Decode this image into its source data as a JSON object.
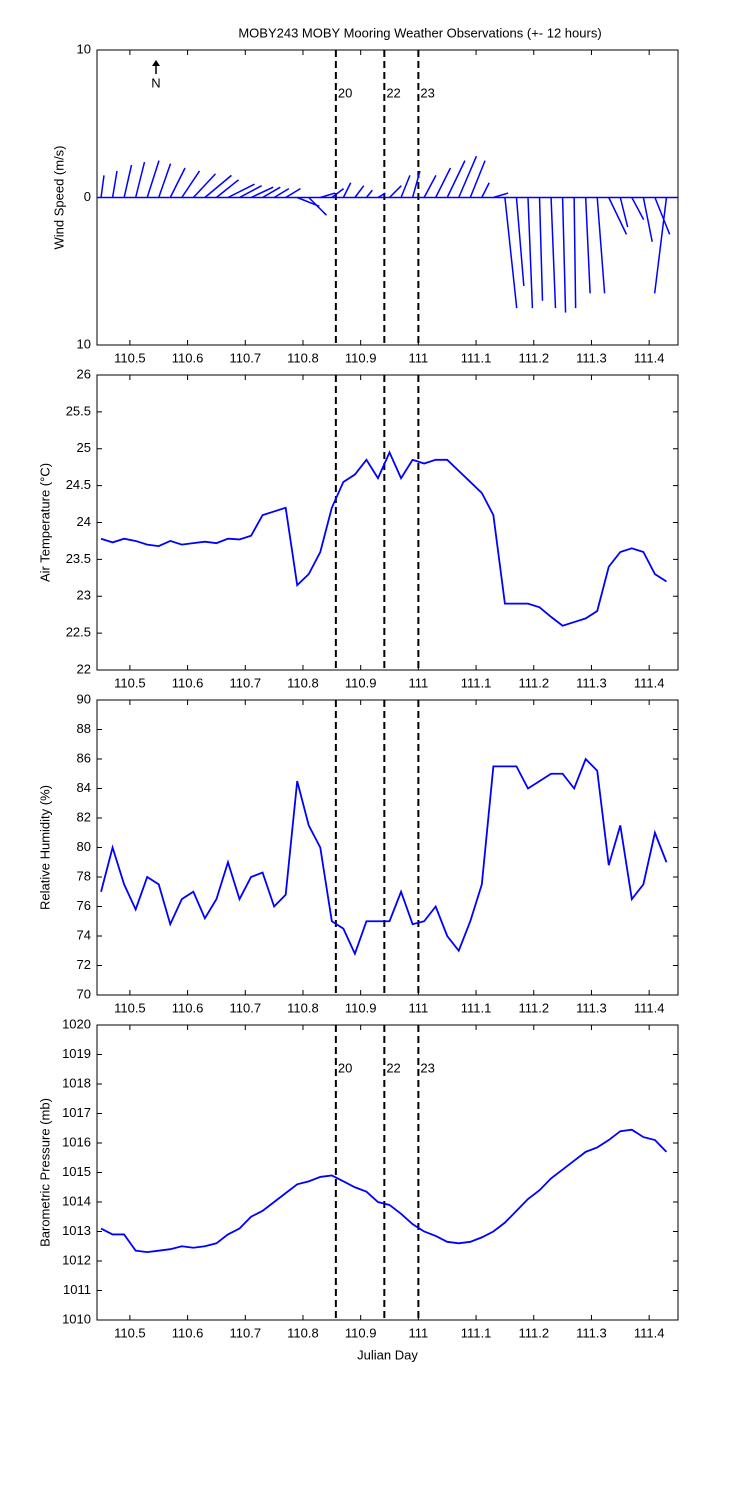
{
  "chart_data": [
    {
      "type": "wind",
      "title": "MOBY243 MOBY Mooring Weather Observations (+- 12 hours)",
      "north_label": "N",
      "ylabel": "Wind Speed (m/s)",
      "color": "#0000ff",
      "x": [
        110.45,
        110.47,
        110.49,
        110.51,
        110.53,
        110.55,
        110.57,
        110.59,
        110.61,
        110.63,
        110.65,
        110.67,
        110.69,
        110.71,
        110.73,
        110.75,
        110.77,
        110.79,
        110.81,
        110.83,
        110.85,
        110.87,
        110.89,
        110.91,
        110.93,
        110.95,
        110.97,
        110.99,
        111.01,
        111.03,
        111.05,
        111.07,
        111.09,
        111.11,
        111.13,
        111.15,
        111.17,
        111.19,
        111.21,
        111.23,
        111.25,
        111.27,
        111.29,
        111.31,
        111.33,
        111.35,
        111.37,
        111.39,
        111.41,
        111.43
      ],
      "u": [
        0.2,
        0.3,
        0.5,
        0.6,
        0.8,
        0.8,
        1.0,
        1.2,
        1.5,
        1.8,
        1.5,
        1.8,
        1.5,
        1.5,
        1.2,
        1.0,
        1.0,
        1.5,
        1.2,
        1.0,
        0.8,
        0.5,
        0.6,
        0.4,
        0.5,
        0.8,
        0.6,
        0.5,
        0.8,
        1.0,
        1.2,
        1.2,
        1.0,
        0.5,
        1.0,
        0.8,
        0.5,
        0.3,
        0.2,
        0.3,
        0.2,
        0.1,
        0.3,
        0.5,
        1.2,
        0.5,
        0.8,
        0.6,
        1.0,
        -0.8
      ],
      "v": [
        1.5,
        1.8,
        2.2,
        2.4,
        2.5,
        2.3,
        2.0,
        1.8,
        1.6,
        1.5,
        1.2,
        0.9,
        0.8,
        0.7,
        0.7,
        0.6,
        0.6,
        -0.6,
        -1.2,
        0.3,
        0.6,
        1.0,
        0.8,
        0.5,
        0.3,
        0.8,
        1.5,
        1.8,
        1.5,
        2.0,
        2.5,
        2.8,
        2.5,
        1.0,
        0.3,
        -7.5,
        -6.0,
        -7.5,
        -7.0,
        -7.5,
        -7.8,
        -7.5,
        -6.5,
        -6.5,
        -2.5,
        -2.0,
        -1.5,
        -3.0,
        -2.5,
        -6.5
      ],
      "xlim": [
        110.443,
        111.45
      ],
      "xticks": [
        110.5,
        110.6,
        110.7,
        110.8,
        110.9,
        111,
        111.1,
        111.2,
        111.3,
        111.4
      ],
      "ylim": [
        -10,
        10
      ],
      "yticks": [
        {
          "value": -10,
          "label": "10"
        },
        0,
        10
      ],
      "annotations": [
        {
          "x": 110.857,
          "label": "20"
        },
        {
          "x": 110.941,
          "label": "22"
        },
        {
          "x": 111.0,
          "label": "23"
        }
      ],
      "annotation_color": "#c00000"
    },
    {
      "type": "line",
      "ylabel": "Air Temperature (°C)",
      "color": "#0000ff",
      "x": [
        110.45,
        110.47,
        110.49,
        110.51,
        110.53,
        110.55,
        110.57,
        110.59,
        110.61,
        110.63,
        110.65,
        110.67,
        110.69,
        110.71,
        110.73,
        110.75,
        110.77,
        110.79,
        110.81,
        110.83,
        110.85,
        110.87,
        110.89,
        110.91,
        110.93,
        110.95,
        110.97,
        110.99,
        111.01,
        111.03,
        111.05,
        111.07,
        111.09,
        111.11,
        111.13,
        111.15,
        111.17,
        111.19,
        111.21,
        111.23,
        111.25,
        111.27,
        111.29,
        111.31,
        111.33,
        111.35,
        111.37,
        111.39,
        111.41,
        111.43
      ],
      "values": [
        23.78,
        23.73,
        23.78,
        23.75,
        23.7,
        23.68,
        23.75,
        23.7,
        23.72,
        23.74,
        23.72,
        23.78,
        23.77,
        23.82,
        24.1,
        24.15,
        24.2,
        23.15,
        23.3,
        23.6,
        24.2,
        24.55,
        24.65,
        24.85,
        24.6,
        24.95,
        24.6,
        24.85,
        24.8,
        24.85,
        24.85,
        24.7,
        24.55,
        24.4,
        24.1,
        22.9,
        22.9,
        22.9,
        22.85,
        22.72,
        22.6,
        22.65,
        22.7,
        22.8,
        23.4,
        23.6,
        23.65,
        23.6,
        23.3,
        23.2
      ],
      "xlim": [
        110.443,
        111.45
      ],
      "xticks": [
        110.5,
        110.6,
        110.7,
        110.8,
        110.9,
        111,
        111.1,
        111.2,
        111.3,
        111.4
      ],
      "ylim": [
        22,
        26
      ],
      "yticks": [
        22,
        22.5,
        23,
        23.5,
        24,
        24.5,
        25,
        25.5,
        26
      ],
      "vlines": [
        110.857,
        110.941,
        111.0
      ]
    },
    {
      "type": "line",
      "ylabel": "Relative Humidity (%)",
      "color": "#0000ff",
      "x": [
        110.45,
        110.47,
        110.49,
        110.51,
        110.53,
        110.55,
        110.57,
        110.59,
        110.61,
        110.63,
        110.65,
        110.67,
        110.69,
        110.71,
        110.73,
        110.75,
        110.77,
        110.79,
        110.81,
        110.83,
        110.85,
        110.87,
        110.89,
        110.91,
        110.93,
        110.95,
        110.97,
        110.99,
        111.01,
        111.03,
        111.05,
        111.07,
        111.09,
        111.11,
        111.13,
        111.15,
        111.17,
        111.19,
        111.21,
        111.23,
        111.25,
        111.27,
        111.29,
        111.31,
        111.33,
        111.35,
        111.37,
        111.39,
        111.41,
        111.43
      ],
      "values": [
        77,
        80,
        77.5,
        75.8,
        78,
        77.5,
        74.8,
        76.5,
        77,
        75.2,
        76.5,
        79,
        76.5,
        78,
        78.3,
        76,
        76.8,
        84.5,
        81.5,
        80,
        75,
        74.5,
        72.8,
        75,
        75,
        75,
        77,
        74.8,
        75,
        76,
        74,
        73,
        75,
        77.5,
        85.5,
        85.5,
        85.5,
        84,
        84.5,
        85,
        85,
        84,
        86,
        85.2,
        78.8,
        81.5,
        76.5,
        77.5,
        81,
        79
      ],
      "xlim": [
        110.443,
        111.45
      ],
      "xticks": [
        110.5,
        110.6,
        110.7,
        110.8,
        110.9,
        111,
        111.1,
        111.2,
        111.3,
        111.4
      ],
      "ylim": [
        70,
        90
      ],
      "yticks": [
        70,
        72,
        74,
        76,
        78,
        80,
        82,
        84,
        86,
        88,
        90
      ],
      "vlines": [
        110.857,
        110.941,
        111.0
      ]
    },
    {
      "type": "line",
      "ylabel": "Barometric Pressure (mb)",
      "xlabel": "Julian Day",
      "color": "#0000ff",
      "x": [
        110.45,
        110.47,
        110.49,
        110.51,
        110.53,
        110.55,
        110.57,
        110.59,
        110.61,
        110.63,
        110.65,
        110.67,
        110.69,
        110.71,
        110.73,
        110.75,
        110.77,
        110.79,
        110.81,
        110.83,
        110.85,
        110.87,
        110.89,
        110.91,
        110.93,
        110.95,
        110.97,
        110.99,
        111.01,
        111.03,
        111.05,
        111.07,
        111.09,
        111.11,
        111.13,
        111.15,
        111.17,
        111.19,
        111.21,
        111.23,
        111.25,
        111.27,
        111.29,
        111.31,
        111.33,
        111.35,
        111.37,
        111.39,
        111.41,
        111.43
      ],
      "values": [
        1013.1,
        1012.9,
        1012.9,
        1012.35,
        1012.3,
        1012.35,
        1012.4,
        1012.5,
        1012.45,
        1012.5,
        1012.6,
        1012.9,
        1013.1,
        1013.5,
        1013.7,
        1014,
        1014.3,
        1014.6,
        1014.7,
        1014.85,
        1014.9,
        1014.7,
        1014.5,
        1014.35,
        1014,
        1013.9,
        1013.6,
        1013.25,
        1013,
        1012.85,
        1012.65,
        1012.6,
        1012.65,
        1012.8,
        1013,
        1013.3,
        1013.7,
        1014.1,
        1014.4,
        1014.8,
        1015.1,
        1015.4,
        1015.7,
        1015.85,
        1016.1,
        1016.4,
        1016.45,
        1016.2,
        1016.1,
        1015.7
      ],
      "xlim": [
        110.443,
        111.45
      ],
      "xticks": [
        110.5,
        110.6,
        110.7,
        110.8,
        110.9,
        111,
        111.1,
        111.2,
        111.3,
        111.4
      ],
      "ylim": [
        1010,
        1020
      ],
      "yticks": [
        1010,
        1011,
        1012,
        1013,
        1014,
        1015,
        1016,
        1017,
        1018,
        1019,
        1020
      ],
      "annotations": [
        {
          "x": 110.857,
          "label": "20"
        },
        {
          "x": 110.941,
          "label": "22"
        },
        {
          "x": 111.0,
          "label": "23"
        }
      ],
      "annotation_color": "#c00000"
    }
  ]
}
